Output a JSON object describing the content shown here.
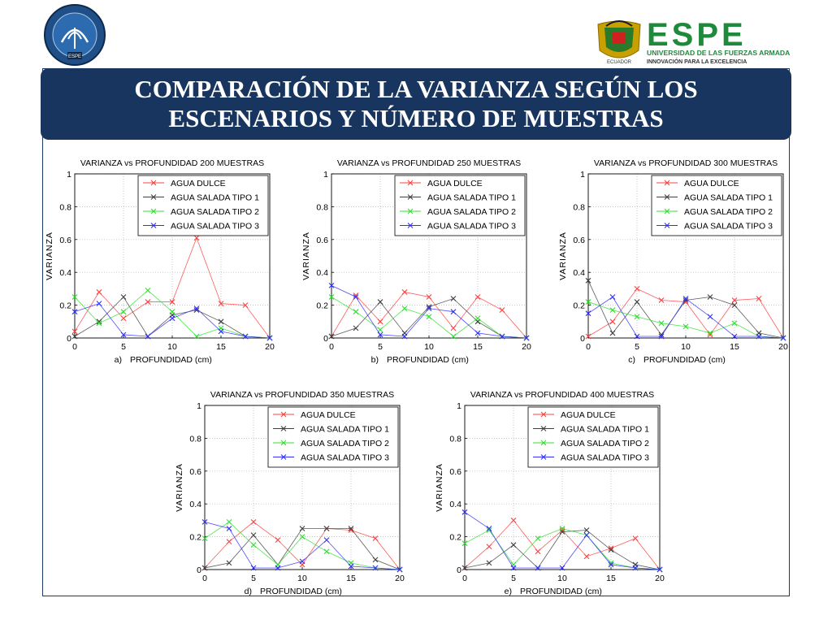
{
  "header": {
    "title_line1": "COMPARACIÓN DE LA VARIANZA SEGÚN LOS",
    "title_line2": "ESCENARIOS Y NÚMERO DE MUESTRAS",
    "university_logo_text": "ESPE",
    "university_name": "UNIVERSIDAD DE LAS FUERZAS ARMADAS",
    "university_slogan": "INNOVACIÓN  PARA  LA  EXCELENCIA",
    "crest_label": "ECUADOR",
    "left_logo_label": "ESPE",
    "brand_green": "#1f8a3b",
    "brand_navy": "#17355e"
  },
  "chart_data": [
    {
      "type": "line",
      "title": "VARIANZA vs PROFUNDIDAD 200 MUESTRAS",
      "panel_label": "a)",
      "xlabel": "PROFUNDIDAD (cm)",
      "ylabel": "VARIANZA",
      "xlim": [
        0,
        20
      ],
      "ylim": [
        0,
        1
      ],
      "xticks": [
        "0",
        "5",
        "10",
        "15",
        "20"
      ],
      "yticks": [
        "0",
        "0.2",
        "0.4",
        "0.6",
        "0.8",
        "1"
      ],
      "grid": true,
      "legend_position": "top-right",
      "series": [
        {
          "name": "AGUA DULCE",
          "color": "#ff4040",
          "x": [
            0,
            2.5,
            5,
            7.5,
            10,
            12.5,
            15,
            17.5,
            20
          ],
          "values": [
            0.04,
            0.28,
            0.12,
            0.22,
            0.22,
            0.61,
            0.21,
            0.2,
            0
          ]
        },
        {
          "name": "AGUA SALADA TIPO 1",
          "color": "#404040",
          "x": [
            0,
            2.5,
            5,
            7.5,
            10,
            12.5,
            15,
            17.5,
            20
          ],
          "values": [
            0.01,
            0.1,
            0.25,
            0.01,
            0.14,
            0.17,
            0.1,
            0.01,
            0
          ]
        },
        {
          "name": "AGUA SALADA TIPO 2",
          "color": "#30e030",
          "x": [
            0,
            2.5,
            5,
            7.5,
            10,
            12.5,
            15,
            17.5,
            20
          ],
          "values": [
            0.25,
            0.09,
            0.16,
            0.29,
            0.16,
            0.01,
            0.06,
            0.01,
            0
          ]
        },
        {
          "name": "AGUA SALADA TIPO 3",
          "color": "#3030ff",
          "x": [
            0,
            2.5,
            5,
            7.5,
            10,
            12.5,
            15,
            17.5,
            20
          ],
          "values": [
            0.16,
            0.21,
            0.02,
            0.01,
            0.12,
            0.18,
            0.04,
            0.01,
            0
          ]
        }
      ]
    },
    {
      "type": "line",
      "title": "VARIANZA vs PROFUNDIDAD 250 MUESTRAS",
      "panel_label": "b)",
      "xlabel": "PROFUNDIDAD (cm)",
      "ylabel": "VARIANZA",
      "xlim": [
        0,
        20
      ],
      "ylim": [
        0,
        1
      ],
      "xticks": [
        "0",
        "5",
        "10",
        "15",
        "20"
      ],
      "yticks": [
        "0",
        "0.2",
        "0.4",
        "0.6",
        "0.8",
        "1"
      ],
      "grid": true,
      "legend_position": "top-right",
      "series": [
        {
          "name": "AGUA DULCE",
          "color": "#ff4040",
          "x": [
            0,
            2.5,
            5,
            7.5,
            10,
            12.5,
            15,
            17.5,
            20
          ],
          "values": [
            0.01,
            0.26,
            0.1,
            0.28,
            0.25,
            0.06,
            0.25,
            0.17,
            0
          ]
        },
        {
          "name": "AGUA SALADA TIPO 1",
          "color": "#404040",
          "x": [
            0,
            2.5,
            5,
            7.5,
            10,
            12.5,
            15,
            17.5,
            20
          ],
          "values": [
            0.01,
            0.06,
            0.22,
            0.03,
            0.19,
            0.24,
            0.1,
            0.01,
            0
          ]
        },
        {
          "name": "AGUA SALADA TIPO 2",
          "color": "#30e030",
          "x": [
            0,
            2.5,
            5,
            7.5,
            10,
            12.5,
            15,
            17.5,
            20
          ],
          "values": [
            0.25,
            0.16,
            0.05,
            0.18,
            0.13,
            0.01,
            0.12,
            0.01,
            0
          ]
        },
        {
          "name": "AGUA SALADA TIPO 3",
          "color": "#3030ff",
          "x": [
            0,
            2.5,
            5,
            7.5,
            10,
            12.5,
            15,
            17.5,
            20
          ],
          "values": [
            0.32,
            0.25,
            0.02,
            0.01,
            0.18,
            0.16,
            0.03,
            0.01,
            0
          ]
        }
      ]
    },
    {
      "type": "line",
      "title": "VARIANZA vs PROFUNDIDAD 300 MUESTRAS",
      "panel_label": "c)",
      "xlabel": "PROFUNDIDAD (cm)",
      "ylabel": "VARIANZA",
      "xlim": [
        0,
        20
      ],
      "ylim": [
        0,
        1
      ],
      "xticks": [
        "0",
        "5",
        "10",
        "15",
        "20"
      ],
      "yticks": [
        "0",
        "0.2",
        "0.4",
        "0.6",
        "0.8",
        "1"
      ],
      "grid": true,
      "legend_position": "top-right",
      "series": [
        {
          "name": "AGUA DULCE",
          "color": "#ff4040",
          "x": [
            0,
            2.5,
            5,
            7.5,
            10,
            12.5,
            15,
            17.5,
            20
          ],
          "values": [
            0.01,
            0.1,
            0.3,
            0.23,
            0.22,
            0.02,
            0.23,
            0.24,
            0
          ]
        },
        {
          "name": "AGUA SALADA TIPO 1",
          "color": "#404040",
          "x": [
            0,
            2.5,
            5,
            7.5,
            10,
            12.5,
            15,
            17.5,
            20
          ],
          "values": [
            0.35,
            0.03,
            0.22,
            0.02,
            0.23,
            0.25,
            0.2,
            0.03,
            0
          ]
        },
        {
          "name": "AGUA SALADA TIPO 2",
          "color": "#30e030",
          "x": [
            0,
            2.5,
            5,
            7.5,
            10,
            12.5,
            15,
            17.5,
            20
          ],
          "values": [
            0.22,
            0.17,
            0.13,
            0.09,
            0.07,
            0.03,
            0.09,
            0.01,
            0
          ]
        },
        {
          "name": "AGUA SALADA TIPO 3",
          "color": "#3030ff",
          "x": [
            0,
            2.5,
            5,
            7.5,
            10,
            12.5,
            15,
            17.5,
            20
          ],
          "values": [
            0.15,
            0.25,
            0.01,
            0.01,
            0.24,
            0.13,
            0.01,
            0.01,
            0
          ]
        }
      ]
    },
    {
      "type": "line",
      "title": "VARIANZA vs PROFUNDIDAD 350 MUESTRAS",
      "panel_label": "d)",
      "xlabel": "PROFUNDIDAD (cm)",
      "ylabel": "VARIANZA",
      "xlim": [
        0,
        20
      ],
      "ylim": [
        0,
        1
      ],
      "xticks": [
        "0",
        "5",
        "10",
        "15",
        "20"
      ],
      "yticks": [
        "0",
        "0.2",
        "0.4",
        "0.6",
        "0.8",
        "1"
      ],
      "grid": true,
      "legend_position": "top-right",
      "series": [
        {
          "name": "AGUA DULCE",
          "color": "#ff4040",
          "x": [
            0,
            2.5,
            5,
            7.5,
            10,
            12.5,
            15,
            17.5,
            20
          ],
          "values": [
            0.01,
            0.17,
            0.29,
            0.18,
            0.03,
            0.25,
            0.24,
            0.19,
            0
          ]
        },
        {
          "name": "AGUA SALADA TIPO 1",
          "color": "#404040",
          "x": [
            0,
            2.5,
            5,
            7.5,
            10,
            12.5,
            15,
            17.5,
            20
          ],
          "values": [
            0.01,
            0.04,
            0.21,
            0.03,
            0.25,
            0.25,
            0.25,
            0.06,
            0
          ]
        },
        {
          "name": "AGUA SALADA TIPO 2",
          "color": "#30e030",
          "x": [
            0,
            2.5,
            5,
            7.5,
            10,
            12.5,
            15,
            17.5,
            20
          ],
          "values": [
            0.19,
            0.29,
            0.15,
            0.03,
            0.2,
            0.11,
            0.04,
            0.01,
            0
          ]
        },
        {
          "name": "AGUA SALADA TIPO 3",
          "color": "#3030ff",
          "x": [
            0,
            2.5,
            5,
            7.5,
            10,
            12.5,
            15,
            17.5,
            20
          ],
          "values": [
            0.29,
            0.25,
            0.01,
            0.01,
            0.05,
            0.18,
            0.02,
            0.01,
            0
          ]
        }
      ]
    },
    {
      "type": "line",
      "title": "VARIANZA vs PROFUNDIDAD 400 MUESTRAS",
      "panel_label": "e)",
      "xlabel": "PROFUNDIDAD (cm)",
      "ylabel": "VARIANZA",
      "xlim": [
        0,
        20
      ],
      "ylim": [
        0,
        1
      ],
      "xticks": [
        "0",
        "5",
        "10",
        "15",
        "20"
      ],
      "yticks": [
        "0",
        "0.2",
        "0.4",
        "0.6",
        "0.8",
        "1"
      ],
      "grid": true,
      "legend_position": "top-right",
      "series": [
        {
          "name": "AGUA DULCE",
          "color": "#ff4040",
          "x": [
            0,
            2.5,
            5,
            7.5,
            10,
            12.5,
            15,
            17.5,
            20
          ],
          "values": [
            0.01,
            0.14,
            0.3,
            0.11,
            0.24,
            0.08,
            0.13,
            0.19,
            0
          ]
        },
        {
          "name": "AGUA SALADA TIPO 1",
          "color": "#404040",
          "x": [
            0,
            2.5,
            5,
            7.5,
            10,
            12.5,
            15,
            17.5,
            20
          ],
          "values": [
            0.01,
            0.04,
            0.15,
            0.01,
            0.23,
            0.24,
            0.12,
            0.03,
            0
          ]
        },
        {
          "name": "AGUA SALADA TIPO 2",
          "color": "#30e030",
          "x": [
            0,
            2.5,
            5,
            7.5,
            10,
            12.5,
            15,
            17.5,
            20
          ],
          "values": [
            0.16,
            0.24,
            0.03,
            0.19,
            0.25,
            0.21,
            0.04,
            0.01,
            0
          ]
        },
        {
          "name": "AGUA SALADA TIPO 3",
          "color": "#3030ff",
          "x": [
            0,
            2.5,
            5,
            7.5,
            10,
            12.5,
            15,
            17.5,
            20
          ],
          "values": [
            0.35,
            0.25,
            0.01,
            0.01,
            0.01,
            0.21,
            0.03,
            0.01,
            0
          ]
        }
      ]
    }
  ]
}
